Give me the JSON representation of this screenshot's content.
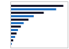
{
  "chart_data": {
    "type": "bar",
    "orientation": "horizontal",
    "categories": [
      null,
      null,
      null,
      null,
      null,
      null,
      null,
      null,
      null,
      null,
      null,
      null
    ],
    "values": [
      111,
      96,
      70,
      49,
      38,
      28,
      22,
      16,
      13,
      10,
      6,
      3
    ],
    "colors": [
      "#1a1a2e",
      "#2272c3",
      "#1a1a2e",
      "#2272c3",
      "#1a1a2e",
      "#2272c3",
      "#1a1a2e",
      "#2272c3",
      "#1a1a2e",
      "#2272c3",
      "#1a1a2e",
      "#2272c3"
    ],
    "xlim": [
      0,
      120
    ],
    "grid": false,
    "tick_labels": false
  }
}
